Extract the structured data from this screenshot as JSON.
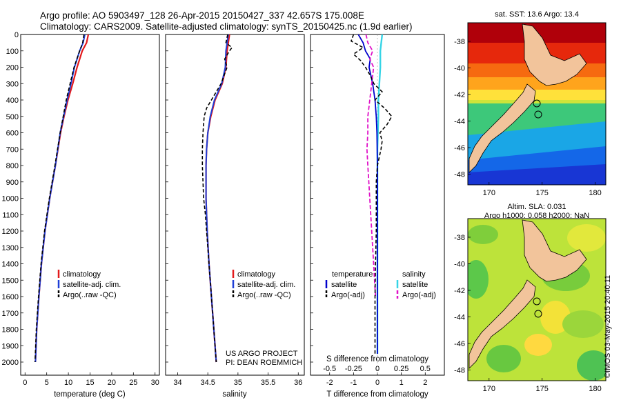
{
  "header": {
    "line1": "Argo profile: AO 5903497_128 26-Apr-2015 20150427_337 42.657S 175.008E",
    "line2": "Climatology: CARS2009. Satellite-adjusted climatology: synTS_20150425.nc (1.9d earlier)"
  },
  "colors": {
    "climatology": "#e31a1c",
    "satellite": "#1f3fd6",
    "argo": "#000000",
    "t_satellite": "#0000cc",
    "s_satellite": "#35d4e6",
    "s_argo": "#e011c8",
    "land": "#f2c49b"
  },
  "chart_data": [
    {
      "type": "line",
      "panel": "temperature",
      "xlabel": "temperature (deg C)",
      "xlim": [
        -1,
        31
      ],
      "xticks": [
        "0",
        "5",
        "10",
        "15",
        "20",
        "25",
        "30"
      ],
      "ylim": [
        0,
        2080
      ],
      "yticks": [
        "0",
        "100",
        "200",
        "300",
        "400",
        "500",
        "600",
        "700",
        "800",
        "900",
        "1000",
        "1100",
        "1200",
        "1300",
        "1400",
        "1500",
        "1600",
        "1700",
        "1800",
        "1900",
        "2000"
      ],
      "legend": [
        "climatology",
        "satellite-adj. clim.",
        "Argo(..raw -QC)"
      ],
      "series": [
        {
          "name": "climatology",
          "depth": [
            0,
            50,
            100,
            200,
            300,
            400,
            500,
            600,
            800,
            1000,
            1200,
            1400,
            1600,
            1800,
            2000
          ],
          "values": [
            14.6,
            14.2,
            13.2,
            12.0,
            11.0,
            9.9,
            9.0,
            8.2,
            7.0,
            5.7,
            4.6,
            3.8,
            3.2,
            2.7,
            2.4
          ]
        },
        {
          "name": "satellite-adj. clim.",
          "depth": [
            0,
            50,
            100,
            200,
            300,
            400,
            500,
            600,
            800,
            1000,
            1200,
            1400,
            1600,
            1800,
            2000
          ],
          "values": [
            13.8,
            13.4,
            12.6,
            11.4,
            10.6,
            9.7,
            8.9,
            8.1,
            7.0,
            5.7,
            4.6,
            3.8,
            3.2,
            2.7,
            2.4
          ]
        },
        {
          "name": "Argo(..raw -QC)",
          "depth": [
            0,
            50,
            100,
            200,
            300,
            400,
            500,
            600,
            800,
            1000,
            1200,
            1400,
            1600,
            1800,
            2000
          ],
          "values": [
            13.6,
            13.3,
            12.6,
            11.3,
            10.4,
            9.5,
            8.8,
            8.1,
            6.9,
            5.6,
            4.5,
            3.7,
            3.1,
            2.6,
            2.3
          ]
        }
      ]
    },
    {
      "type": "line",
      "panel": "salinity",
      "xlabel": "salinity",
      "xlim": [
        33.8,
        36.1
      ],
      "xticks": [
        "34",
        "34.5",
        "35",
        "35.5",
        "36"
      ],
      "ylim": [
        0,
        2080
      ],
      "legend": [
        "climatology",
        "satellite-adj. clim.",
        "Argo(..raw -QC)"
      ],
      "credit": [
        "US ARGO PROJECT",
        "PI: DEAN ROEMMICH"
      ],
      "series": [
        {
          "name": "climatology",
          "depth": [
            0,
            50,
            100,
            200,
            300,
            400,
            500,
            600,
            700,
            800,
            900,
            1000,
            1200,
            1400,
            1600,
            1800,
            2000
          ],
          "values": [
            34.86,
            34.84,
            34.82,
            34.8,
            34.74,
            34.62,
            34.55,
            34.5,
            34.48,
            34.47,
            34.47,
            34.47,
            34.49,
            34.52,
            34.56,
            34.6,
            34.64
          ]
        },
        {
          "name": "satellite-adj. clim.",
          "depth": [
            0,
            50,
            100,
            200,
            300,
            400,
            500,
            600,
            700,
            800,
            900,
            1000,
            1200,
            1400,
            1600,
            1800,
            2000
          ],
          "values": [
            34.84,
            34.82,
            34.8,
            34.79,
            34.73,
            34.61,
            34.54,
            34.5,
            34.48,
            34.47,
            34.47,
            34.47,
            34.49,
            34.52,
            34.56,
            34.6,
            34.64
          ]
        },
        {
          "name": "Argo(..raw -QC)",
          "depth": [
            0,
            50,
            80,
            100,
            150,
            200,
            300,
            400,
            450,
            500,
            600,
            700,
            800,
            900,
            1000,
            1100,
            1200,
            1400,
            1600,
            1800,
            2000
          ],
          "values": [
            34.83,
            34.8,
            34.9,
            34.86,
            34.78,
            34.82,
            34.72,
            34.56,
            34.48,
            34.44,
            34.42,
            34.41,
            34.41,
            34.42,
            34.43,
            34.46,
            34.48,
            34.52,
            34.56,
            34.6,
            34.64
          ]
        }
      ]
    },
    {
      "type": "line",
      "panel": "difference",
      "xlabel": "T difference from climatology",
      "xlabel_top": "S difference from climatology",
      "xlim": [
        -2.8,
        2.8
      ],
      "xticks_T": [
        "-2",
        "-1",
        "0",
        "1",
        "2"
      ],
      "xticks_S": [
        "-0.5",
        "-0.25",
        "0",
        "0.25",
        "0.5"
      ],
      "ylim": [
        0,
        2080
      ],
      "legend_titles": [
        "temperature",
        "salinity"
      ],
      "legend": [
        "satellite",
        "Argo(-adj)",
        "satellite",
        "Argo(-adj)"
      ],
      "series": [
        {
          "name": "satellite",
          "group": "temperature",
          "depth": [
            0,
            50,
            100,
            150,
            200,
            300,
            400,
            500,
            600,
            800,
            1000,
            1500,
            1950
          ],
          "values": [
            -0.8,
            -0.6,
            -0.5,
            -0.3,
            -0.35,
            -0.2,
            -0.1,
            -0.05,
            -0.02,
            0,
            0,
            0,
            0
          ]
        },
        {
          "name": "Argo(-adj)",
          "group": "temperature",
          "depth": [
            0,
            40,
            80,
            120,
            160,
            200,
            250,
            300,
            350,
            400,
            450,
            500,
            550,
            600,
            650,
            700,
            800,
            900,
            1000,
            1200,
            1400,
            1600,
            1800,
            1950
          ],
          "values": [
            -1.0,
            -1.1,
            -0.6,
            -1.0,
            -0.7,
            -0.5,
            -0.3,
            -0.15,
            0.2,
            -0.1,
            0.3,
            0.6,
            0.4,
            0.1,
            0.2,
            0.15,
            0,
            -0.05,
            -0.05,
            -0.05,
            -0.08,
            -0.1,
            -0.1,
            -0.1
          ]
        },
        {
          "name": "satellite",
          "group": "salinity",
          "depth": [
            0,
            100,
            200,
            300,
            400,
            500,
            700,
            1000,
            1500,
            1950
          ],
          "values": [
            0.05,
            0.03,
            0.03,
            0.02,
            0.01,
            0.01,
            0,
            0,
            0,
            0
          ]
        },
        {
          "name": "Argo(-adj)",
          "group": "salinity",
          "depth": [
            0,
            50,
            100,
            150,
            200,
            300,
            400,
            500,
            600,
            700,
            800,
            900,
            1000,
            1200,
            1400,
            1500,
            1600
          ],
          "values": [
            -0.12,
            -0.1,
            -0.05,
            -0.08,
            -0.04,
            -0.06,
            -0.08,
            -0.1,
            -0.1,
            -0.11,
            -0.1,
            -0.09,
            -0.08,
            -0.06,
            -0.04,
            -0.03,
            -0.02
          ]
        }
      ]
    },
    {
      "type": "heatmap",
      "panel": "sst-map",
      "title": "sat. SST: 13.6 Argo: 13.4",
      "xticks": [
        "170",
        "175",
        "180"
      ],
      "yticks": [
        "-38",
        "-40",
        "-42",
        "-44",
        "-46",
        "-48"
      ],
      "xlim": [
        168,
        181
      ],
      "ylim": [
        -48.8,
        -36.6
      ],
      "float_position": {
        "lon": 175.008,
        "lat": -42.657
      }
    },
    {
      "type": "heatmap",
      "panel": "sla-map",
      "title": [
        "Altim. SLA: 0.031",
        "Argo h1000: 0.058 h2000: NaN"
      ],
      "xticks": [
        "170",
        "175",
        "180"
      ],
      "yticks": [
        "-38",
        "-40",
        "-42",
        "-44",
        "-46",
        "-48"
      ],
      "xlim": [
        168,
        181
      ],
      "ylim": [
        -48.8,
        -36.6
      ],
      "float_position": {
        "lon": 175.008,
        "lat": -42.657
      }
    }
  ],
  "stamp": "©IMOS 03-May-2015 20:40:11"
}
